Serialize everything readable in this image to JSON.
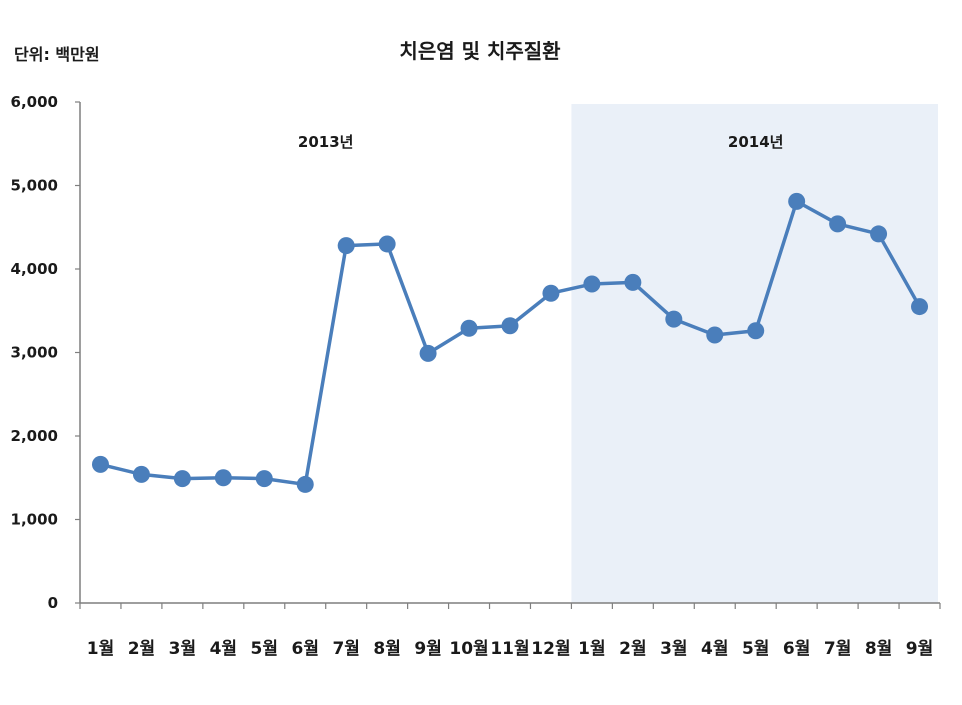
{
  "chart_data": {
    "type": "line",
    "title": "치은염 및 치주질환",
    "unit_label": "단위: 백만원",
    "ylim": [
      0,
      6000
    ],
    "yticks": [
      "0",
      "1,000",
      "2,000",
      "3,000",
      "4,000",
      "5,000",
      "6,000"
    ],
    "ytick_values": [
      0,
      1000,
      2000,
      3000,
      4000,
      5000,
      6000
    ],
    "categories": [
      "1월",
      "2월",
      "3월",
      "4월",
      "5월",
      "6월",
      "7월",
      "8월",
      "9월",
      "10월",
      "11월",
      "12월",
      "1월",
      "2월",
      "3월",
      "4월",
      "5월",
      "6월",
      "7월",
      "8월",
      "9월"
    ],
    "values": [
      1660,
      1540,
      1490,
      1500,
      1490,
      1420,
      4280,
      4300,
      2990,
      3290,
      3320,
      3710,
      3820,
      3840,
      3400,
      3210,
      3260,
      4810,
      4540,
      4420,
      3550
    ],
    "regions": [
      {
        "label": "2013년",
        "start_index": 0,
        "end_index": 11,
        "shaded": false
      },
      {
        "label": "2014년",
        "start_index": 12,
        "end_index": 20,
        "shaded": true
      }
    ],
    "grid": false,
    "colors": {
      "line": "#4a7ebb",
      "marker": "#4a7ebb",
      "shade": "#eaf0f8",
      "axis": "#7f7f7f"
    }
  }
}
